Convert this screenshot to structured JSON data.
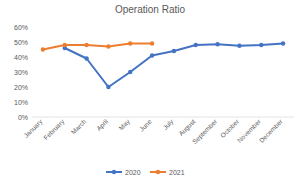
{
  "chart_data": {
    "type": "line",
    "title": "Operation Ratio",
    "categories": [
      "January",
      "February",
      "March",
      "April",
      "May",
      "June",
      "July",
      "August",
      "September",
      "October",
      "November",
      "December"
    ],
    "series": [
      {
        "name": "2020",
        "color": "#4472c4",
        "marker": "circle",
        "values": [
          null,
          46,
          39,
          20,
          30,
          41,
          44,
          48,
          48.5,
          47.5,
          48,
          49
        ]
      },
      {
        "name": "2021",
        "color": "#ed7d31",
        "marker": "circle",
        "values": [
          45,
          48,
          48,
          47,
          49,
          49,
          null,
          null,
          null,
          null,
          null,
          null
        ]
      }
    ],
    "ylim": [
      0,
      60
    ],
    "yticks": [
      {
        "value": 0,
        "label": "0%"
      },
      {
        "value": 10,
        "label": "10%"
      },
      {
        "value": 20,
        "label": "20%"
      },
      {
        "value": 30,
        "label": "30%"
      },
      {
        "value": 40,
        "label": "40%"
      },
      {
        "value": 50,
        "label": "50%"
      },
      {
        "value": 60,
        "label": "60%"
      }
    ],
    "grid": false,
    "legend": "bottom"
  }
}
